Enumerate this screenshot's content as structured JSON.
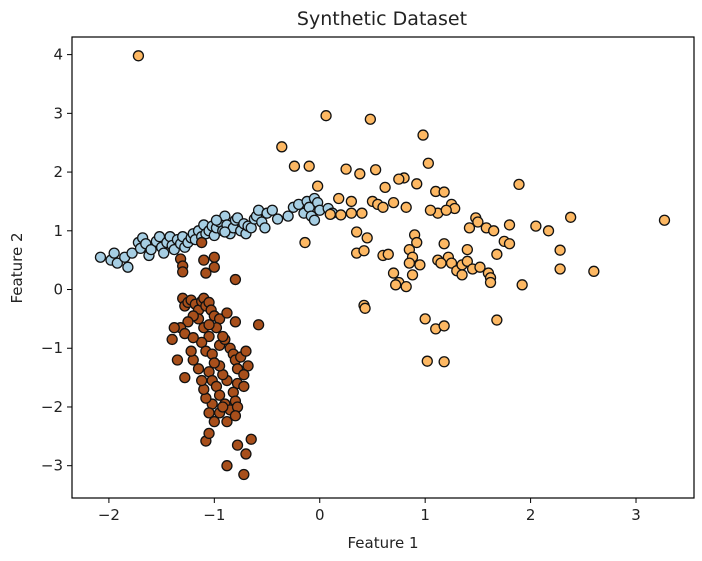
{
  "chart_data": {
    "type": "scatter",
    "title": "Synthetic Dataset",
    "xlabel": "Feature 1",
    "ylabel": "Feature 2",
    "xlim": [
      -2.35,
      3.55
    ],
    "ylim": [
      -3.55,
      4.3
    ],
    "xticks": [
      -2,
      -1,
      0,
      1,
      2,
      3
    ],
    "yticks": [
      -3,
      -2,
      -1,
      0,
      1,
      2,
      3,
      4
    ],
    "grid": false,
    "legend": "none",
    "series": [
      {
        "color": "#a6cee3",
        "points": [
          [
            -2.08,
            0.55
          ],
          [
            -1.98,
            0.5
          ],
          [
            -1.95,
            0.62
          ],
          [
            -1.92,
            0.45
          ],
          [
            -1.85,
            0.55
          ],
          [
            -1.82,
            0.38
          ],
          [
            -1.78,
            0.62
          ],
          [
            -1.72,
            0.8
          ],
          [
            -1.7,
            0.7
          ],
          [
            -1.68,
            0.88
          ],
          [
            -1.65,
            0.78
          ],
          [
            -1.62,
            0.58
          ],
          [
            -1.6,
            0.68
          ],
          [
            -1.55,
            0.82
          ],
          [
            -1.52,
            0.9
          ],
          [
            -1.5,
            0.72
          ],
          [
            -1.48,
            0.62
          ],
          [
            -1.45,
            0.8
          ],
          [
            -1.42,
            0.9
          ],
          [
            -1.4,
            0.75
          ],
          [
            -1.38,
            0.68
          ],
          [
            -1.35,
            0.85
          ],
          [
            -1.32,
            0.78
          ],
          [
            -1.3,
            0.9
          ],
          [
            -1.28,
            0.72
          ],
          [
            -1.25,
            0.8
          ],
          [
            -1.22,
            0.88
          ],
          [
            -1.2,
            0.95
          ],
          [
            -1.18,
            0.85
          ],
          [
            -1.15,
            1.0
          ],
          [
            -1.12,
            0.9
          ],
          [
            -1.1,
            1.1
          ],
          [
            -1.08,
            0.95
          ],
          [
            -1.05,
            1.0
          ],
          [
            -1.02,
            1.08
          ],
          [
            -1.0,
            0.92
          ],
          [
            -0.98,
            1.05
          ],
          [
            -0.95,
            1.15
          ],
          [
            -0.92,
            1.0
          ],
          [
            -0.9,
            1.25
          ],
          [
            -0.88,
            1.1
          ],
          [
            -0.85,
            0.95
          ],
          [
            -0.82,
            1.05
          ],
          [
            -0.8,
            1.18
          ],
          [
            -0.78,
            1.22
          ],
          [
            -0.75,
            1.0
          ],
          [
            -0.72,
            1.12
          ],
          [
            -0.7,
            0.95
          ],
          [
            -0.68,
            1.08
          ],
          [
            -0.65,
            1.05
          ],
          [
            -0.62,
            1.2
          ],
          [
            -0.6,
            1.25
          ],
          [
            -0.58,
            1.35
          ],
          [
            -0.55,
            1.15
          ],
          [
            -0.52,
            1.05
          ],
          [
            -0.5,
            1.3
          ],
          [
            -0.45,
            1.35
          ],
          [
            -0.4,
            1.2
          ],
          [
            -0.3,
            1.25
          ],
          [
            -0.25,
            1.4
          ],
          [
            -0.2,
            1.45
          ],
          [
            -0.15,
            1.3
          ],
          [
            -0.12,
            1.5
          ],
          [
            -0.1,
            1.4
          ],
          [
            -0.05,
            1.55
          ],
          [
            -0.02,
            1.48
          ],
          [
            0.0,
            1.35
          ],
          [
            -0.08,
            1.25
          ],
          [
            -0.05,
            1.18
          ],
          [
            0.08,
            1.38
          ],
          [
            0.12,
            1.3
          ],
          [
            -0.9,
            0.98
          ],
          [
            -0.98,
            1.18
          ]
        ]
      },
      {
        "color": "#fdb863",
        "points": [
          [
            -1.72,
            3.98
          ],
          [
            0.06,
            2.96
          ],
          [
            0.48,
            2.9
          ],
          [
            0.98,
            2.63
          ],
          [
            -0.36,
            2.43
          ],
          [
            -0.24,
            2.1
          ],
          [
            -0.1,
            2.1
          ],
          [
            0.25,
            2.05
          ],
          [
            0.38,
            1.97
          ],
          [
            0.53,
            2.04
          ],
          [
            1.03,
            2.15
          ],
          [
            0.8,
            1.9
          ],
          [
            0.75,
            1.88
          ],
          [
            0.92,
            1.8
          ],
          [
            0.62,
            1.74
          ],
          [
            1.89,
            1.79
          ],
          [
            -0.02,
            1.76
          ],
          [
            0.18,
            1.55
          ],
          [
            0.3,
            1.5
          ],
          [
            0.5,
            1.5
          ],
          [
            0.55,
            1.45
          ],
          [
            0.7,
            1.48
          ],
          [
            0.82,
            1.4
          ],
          [
            0.6,
            1.4
          ],
          [
            0.4,
            1.3
          ],
          [
            0.3,
            1.3
          ],
          [
            0.2,
            1.27
          ],
          [
            0.1,
            1.28
          ],
          [
            1.1,
            1.67
          ],
          [
            1.18,
            1.66
          ],
          [
            1.12,
            1.3
          ],
          [
            1.05,
            1.35
          ],
          [
            1.25,
            1.45
          ],
          [
            1.28,
            1.38
          ],
          [
            1.2,
            1.35
          ],
          [
            1.48,
            1.22
          ],
          [
            1.5,
            1.15
          ],
          [
            1.42,
            1.05
          ],
          [
            1.58,
            1.05
          ],
          [
            1.65,
            1.0
          ],
          [
            1.8,
            1.1
          ],
          [
            1.75,
            0.82
          ],
          [
            1.8,
            0.78
          ],
          [
            2.05,
            1.08
          ],
          [
            2.17,
            1.0
          ],
          [
            2.38,
            1.23
          ],
          [
            2.28,
            0.67
          ],
          [
            3.27,
            1.18
          ],
          [
            0.35,
            0.98
          ],
          [
            0.45,
            0.88
          ],
          [
            0.6,
            0.58
          ],
          [
            0.65,
            0.6
          ],
          [
            0.35,
            0.62
          ],
          [
            0.42,
            0.66
          ],
          [
            0.9,
            0.93
          ],
          [
            0.85,
            0.68
          ],
          [
            0.92,
            0.8
          ],
          [
            0.88,
            0.55
          ],
          [
            0.95,
            0.42
          ],
          [
            0.85,
            0.45
          ],
          [
            1.12,
            0.5
          ],
          [
            1.18,
            0.78
          ],
          [
            1.22,
            0.55
          ],
          [
            1.25,
            0.45
          ],
          [
            1.3,
            0.32
          ],
          [
            1.35,
            0.42
          ],
          [
            1.4,
            0.48
          ],
          [
            1.45,
            0.35
          ],
          [
            1.52,
            0.38
          ],
          [
            1.6,
            0.28
          ],
          [
            1.62,
            0.2
          ],
          [
            1.62,
            0.12
          ],
          [
            1.68,
            0.6
          ],
          [
            1.92,
            0.08
          ],
          [
            2.28,
            0.35
          ],
          [
            2.6,
            0.31
          ],
          [
            1.35,
            0.25
          ],
          [
            1.4,
            0.68
          ],
          [
            1.15,
            0.45
          ],
          [
            0.7,
            0.28
          ],
          [
            0.75,
            0.12
          ],
          [
            0.82,
            0.05
          ],
          [
            0.88,
            0.25
          ],
          [
            0.72,
            0.08
          ],
          [
            1.0,
            -0.5
          ],
          [
            1.1,
            -0.67
          ],
          [
            1.18,
            -0.62
          ],
          [
            1.68,
            -0.52
          ],
          [
            0.42,
            -0.27
          ],
          [
            0.43,
            -0.32
          ],
          [
            1.02,
            -1.22
          ],
          [
            1.18,
            -1.23
          ],
          [
            -0.14,
            0.8
          ]
        ]
      },
      {
        "color": "#a84f1b",
        "points": [
          [
            -1.32,
            0.52
          ],
          [
            -1.3,
            0.4
          ],
          [
            -1.3,
            0.3
          ],
          [
            -1.1,
            0.5
          ],
          [
            -1.08,
            0.28
          ],
          [
            -1.12,
            0.8
          ],
          [
            -1.0,
            0.55
          ],
          [
            -1.0,
            0.38
          ],
          [
            -0.8,
            0.17
          ],
          [
            -1.3,
            -0.15
          ],
          [
            -1.28,
            -0.28
          ],
          [
            -1.25,
            -0.22
          ],
          [
            -1.22,
            -0.18
          ],
          [
            -1.18,
            -0.25
          ],
          [
            -1.15,
            -0.35
          ],
          [
            -1.12,
            -0.2
          ],
          [
            -1.1,
            -0.15
          ],
          [
            -1.08,
            -0.28
          ],
          [
            -1.05,
            -0.22
          ],
          [
            -1.03,
            -0.35
          ],
          [
            -1.15,
            -0.5
          ],
          [
            -1.2,
            -0.45
          ],
          [
            -1.25,
            -0.55
          ],
          [
            -1.32,
            -0.65
          ],
          [
            -1.28,
            -0.75
          ],
          [
            -1.1,
            -0.65
          ],
          [
            -1.0,
            -0.45
          ],
          [
            -0.95,
            -0.5
          ],
          [
            -0.98,
            -0.65
          ],
          [
            -1.05,
            -0.8
          ],
          [
            -1.12,
            -0.9
          ],
          [
            -1.08,
            -1.05
          ],
          [
            -1.02,
            -1.1
          ],
          [
            -0.95,
            -0.95
          ],
          [
            -0.9,
            -0.85
          ],
          [
            -0.85,
            -1.0
          ],
          [
            -0.82,
            -1.1
          ],
          [
            -0.8,
            -1.2
          ],
          [
            -0.78,
            -1.35
          ],
          [
            -0.75,
            -1.15
          ],
          [
            -0.7,
            -1.05
          ],
          [
            -0.68,
            -1.3
          ],
          [
            -0.72,
            -1.45
          ],
          [
            -0.78,
            -1.6
          ],
          [
            -0.82,
            -1.75
          ],
          [
            -0.88,
            -1.55
          ],
          [
            -0.92,
            -1.45
          ],
          [
            -0.95,
            -1.3
          ],
          [
            -1.0,
            -1.25
          ],
          [
            -1.05,
            -1.4
          ],
          [
            -1.02,
            -1.55
          ],
          [
            -0.98,
            -1.65
          ],
          [
            -0.95,
            -1.8
          ],
          [
            -0.9,
            -1.95
          ],
          [
            -0.85,
            -2.05
          ],
          [
            -0.8,
            -1.9
          ],
          [
            -0.78,
            -2.0
          ],
          [
            -0.8,
            -2.15
          ],
          [
            -0.88,
            -2.25
          ],
          [
            -0.95,
            -2.1
          ],
          [
            -1.02,
            -1.95
          ],
          [
            -1.05,
            -2.1
          ],
          [
            -1.0,
            -2.25
          ],
          [
            -0.92,
            -2.0
          ],
          [
            -1.08,
            -1.85
          ],
          [
            -1.1,
            -1.7
          ],
          [
            -1.12,
            -1.55
          ],
          [
            -1.15,
            -1.35
          ],
          [
            -1.2,
            -1.2
          ],
          [
            -1.22,
            -1.05
          ],
          [
            -1.35,
            -1.2
          ],
          [
            -1.28,
            -1.5
          ],
          [
            -1.38,
            -0.65
          ],
          [
            -1.4,
            -0.85
          ],
          [
            -1.2,
            -0.82
          ],
          [
            -0.8,
            -0.55
          ],
          [
            -0.58,
            -0.6
          ],
          [
            -0.72,
            -1.65
          ],
          [
            -0.78,
            -2.65
          ],
          [
            -0.65,
            -2.55
          ],
          [
            -1.08,
            -2.58
          ],
          [
            -1.05,
            -2.45
          ],
          [
            -0.88,
            -3.0
          ],
          [
            -0.7,
            -2.8
          ],
          [
            -0.72,
            -3.15
          ],
          [
            -0.88,
            -0.4
          ],
          [
            -0.92,
            -0.8
          ],
          [
            -1.05,
            -0.6
          ]
        ]
      }
    ]
  }
}
